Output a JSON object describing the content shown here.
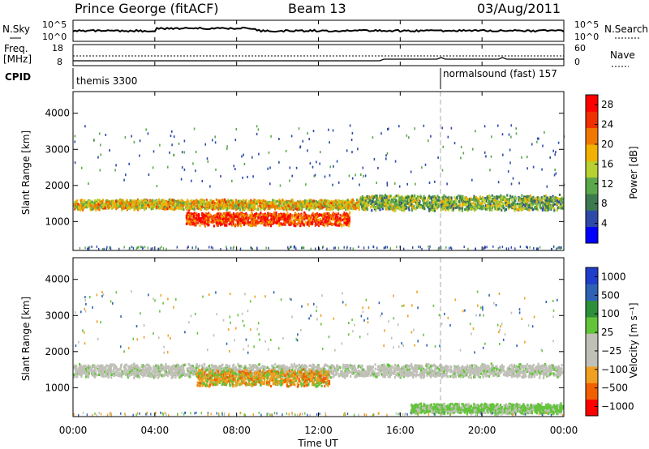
{
  "header": {
    "station": "Prince George (fitACF)",
    "beam": "Beam 13",
    "date": "03/Aug/2011"
  },
  "top_panels": {
    "nsky_label": "N.Sky",
    "nsky_ticks": [
      "10^5",
      "10^0"
    ],
    "nsearch_label": "N.Search",
    "freq_label_1": "Freq.",
    "freq_label_2": "[MHz]",
    "freq_ticks": [
      "18",
      "8"
    ],
    "nave_ticks": [
      "60",
      "0"
    ],
    "nave_label": "Nave",
    "cpid_label": "CPID",
    "cpid_1": "themis 3300",
    "cpid_2": "normalsound (fast) 157"
  },
  "colors": {
    "power_scale": [
      "#0000ff",
      "#2d4aa8",
      "#3d7a50",
      "#5aa84a",
      "#b8d030",
      "#f2b000",
      "#f07800",
      "#f03000",
      "#ff0000"
    ],
    "velocity_scale": [
      "#1f3ecb",
      "#2f62b4",
      "#2e8f3a",
      "#63c43a",
      "#c0c0b8",
      "#c0c0b8",
      "#f0a020",
      "#f06000",
      "#ff0000"
    ]
  },
  "chart_data": [
    {
      "type": "heatmap",
      "title": "Power",
      "xlabel": "Time UT",
      "ylabel": "Slant Range [km]",
      "xlim": [
        "00:00",
        "24:00"
      ],
      "ylim": [
        200,
        4600
      ],
      "xticks": [
        "00:00",
        "04:00",
        "08:00",
        "12:00",
        "16:00",
        "20:00",
        "00:00"
      ],
      "yticks": [
        "1000",
        "2000",
        "3000",
        "4000"
      ],
      "colorbar": {
        "label": "Power [dB]",
        "ticks": [
          "4",
          "8",
          "12",
          "16",
          "20",
          "24",
          "28"
        ],
        "range": [
          0,
          30
        ]
      },
      "features": [
        {
          "time_start": 0.0,
          "time_end": 14.0,
          "range_center": 1500,
          "range_halfwidth": 150,
          "value": 18
        },
        {
          "time_start": 5.5,
          "time_end": 13.5,
          "range_center": 1100,
          "range_halfwidth": 200,
          "value": 26
        },
        {
          "time_start": 14.0,
          "time_end": 24.0,
          "range_center": 1550,
          "range_halfwidth": 230,
          "value": 12
        }
      ]
    },
    {
      "type": "heatmap",
      "title": "Velocity",
      "xlabel": "Time UT",
      "ylabel": "Slant Range [km]",
      "xlim": [
        "00:00",
        "24:00"
      ],
      "ylim": [
        200,
        4600
      ],
      "xticks": [
        "00:00",
        "04:00",
        "08:00",
        "12:00",
        "16:00",
        "20:00",
        "00:00"
      ],
      "yticks": [
        "1000",
        "2000",
        "3000",
        "4000"
      ],
      "colorbar": {
        "label": "Velocity [m s⁻¹]",
        "ticks": [
          "1000",
          "500",
          "100",
          "25",
          "−25",
          "−100",
          "−500",
          "−1000"
        ]
      },
      "features": [
        {
          "time_start": 0.0,
          "time_end": 24.0,
          "range_center": 1500,
          "range_halfwidth": 200,
          "value": 0
        },
        {
          "time_start": 6.0,
          "time_end": 12.5,
          "range_center": 1300,
          "range_halfwidth": 250,
          "value": -300
        },
        {
          "time_start": 16.5,
          "time_end": 24.0,
          "range_center": 450,
          "range_halfwidth": 150,
          "value": 100
        }
      ]
    }
  ]
}
